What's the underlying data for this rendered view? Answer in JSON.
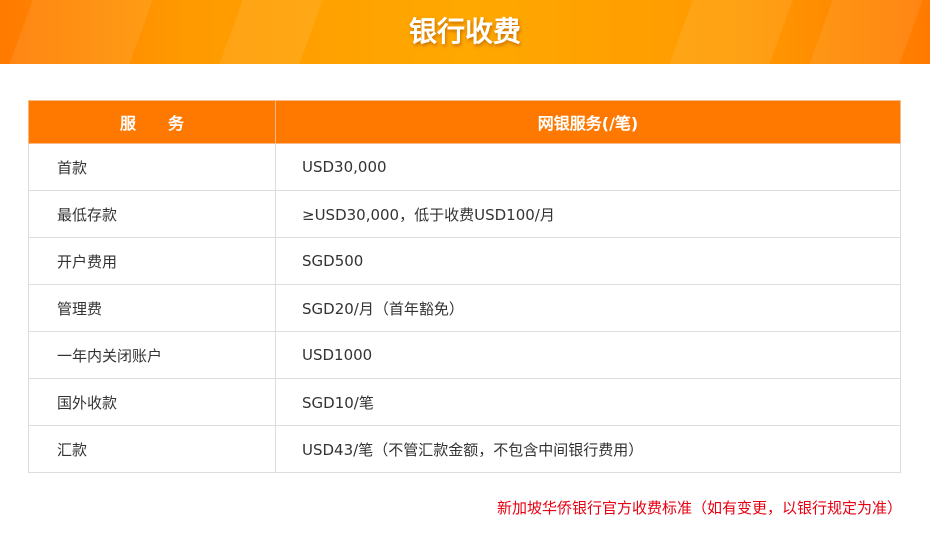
{
  "banner": {
    "title": "银行收费"
  },
  "table": {
    "headers": [
      "服　　务",
      "网银服务(/笔)"
    ],
    "rows": [
      [
        "首款",
        "USD30,000"
      ],
      [
        "最低存款",
        "≥USD30,000，低于收费USD100/月"
      ],
      [
        "开户费用",
        "SGD500"
      ],
      [
        "管理费",
        "SGD20/月（首年豁免）"
      ],
      [
        "一年内关闭账户",
        "USD1000"
      ],
      [
        "国外收款",
        "SGD10/笔"
      ],
      [
        "汇款",
        "USD43/笔（不管汇款金额，不包含中间银行费用）"
      ]
    ]
  },
  "note": "新加坡华侨银行官方收费标准（如有变更，以银行规定为准）",
  "colors": {
    "accent": "#ff7800",
    "note": "#e60012"
  }
}
